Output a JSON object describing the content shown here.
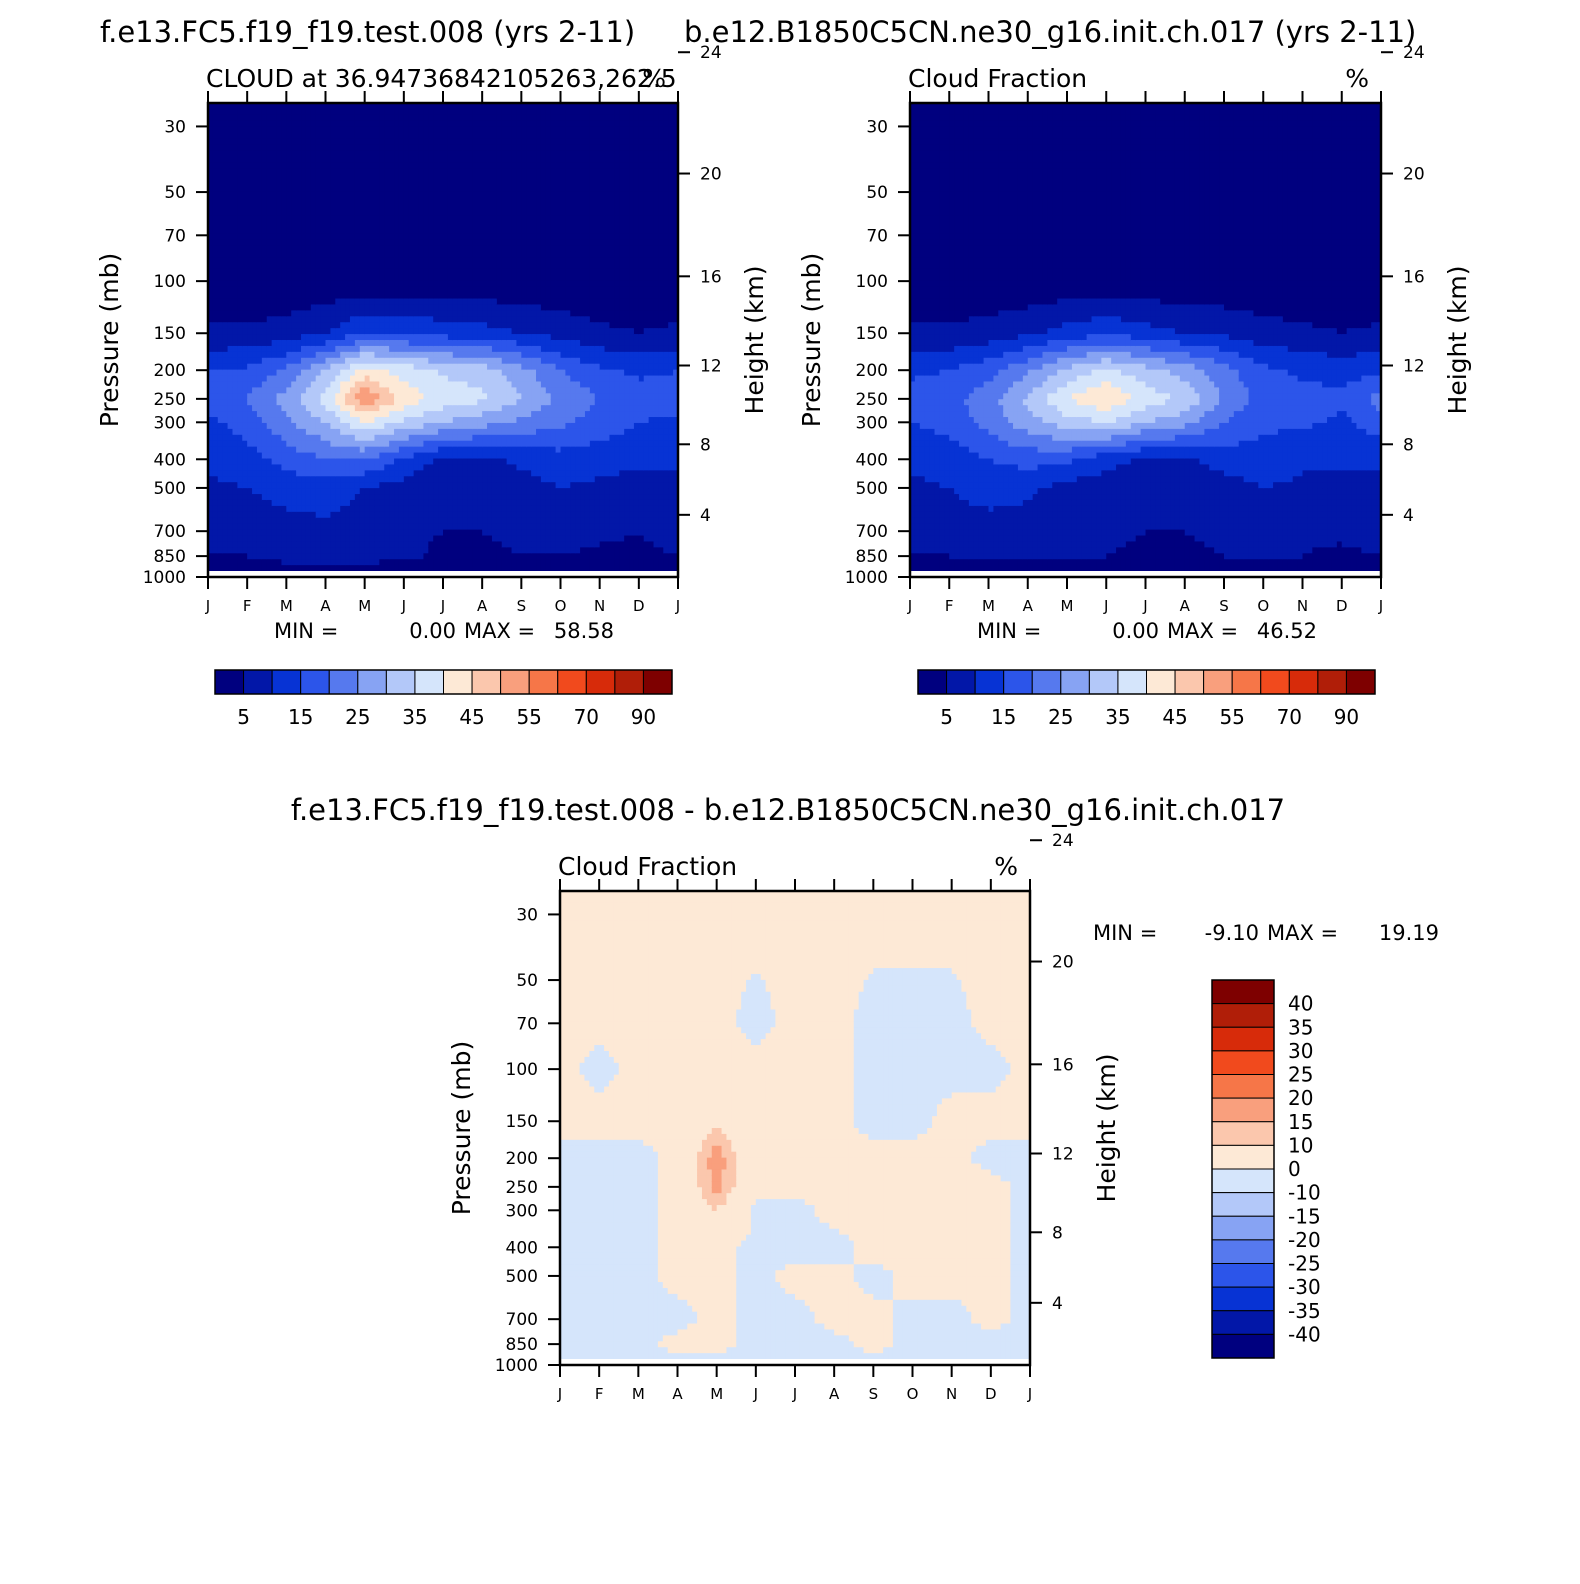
{
  "panels": {
    "top_left_title": "f.e13.FC5.f19_f19.test.008 (yrs 2-11)",
    "top_right_title": "b.e12.B1850C5CN.ne30_g16.init.ch.017 (yrs 2-11)",
    "bottom_title": "f.e13.FC5.f19_f19.test.008 - b.e12.B1850C5CN.ne30_g16.init.ch.017"
  },
  "colors": {
    "cloud_levels": [
      "#00007f",
      "#0217a8",
      "#0733d4",
      "#2c55ea",
      "#5679ee",
      "#87a3f3",
      "#b3c8f9",
      "#d5e5fb",
      "#fde9d6",
      "#fbc7ad",
      "#f99f7d",
      "#f67648",
      "#f14a1d",
      "#d72b0a",
      "#b01e08",
      "#7e0000"
    ],
    "diff_levels": [
      "#00007f",
      "#0217a8",
      "#0733d4",
      "#2c55ea",
      "#5679ee",
      "#87a3f3",
      "#b3c8f9",
      "#d5e5fb",
      "#fde9d6",
      "#fbc7ad",
      "#f99f7d",
      "#f67648",
      "#f14a1d",
      "#d72b0a",
      "#b01e08",
      "#7e0000"
    ]
  },
  "chart_data": [
    {
      "type": "heatmap",
      "id": "test_case",
      "subtitle_left": "CLOUD at 36.94736842105263,262.5",
      "subtitle_right": "%",
      "ylabel_left": "Pressure (mb)",
      "ylabel_right": "Height (km)",
      "pressure_ticks": [
        30,
        50,
        70,
        100,
        150,
        200,
        250,
        300,
        400,
        500,
        700,
        850,
        1000
      ],
      "height_ticks": [
        4,
        8,
        12,
        16,
        20,
        24
      ],
      "month_labels": [
        "J",
        "F",
        "M",
        "A",
        "M",
        "J",
        "J",
        "A",
        "S",
        "O",
        "N",
        "D",
        "J"
      ],
      "min_label": "MIN =",
      "min_value": "0.00",
      "max_label": "MAX =",
      "max_value": "58.58",
      "levelbar_labels": [
        "5",
        "15",
        "25",
        "35",
        "45",
        "55",
        "70",
        "90"
      ],
      "approx_field": {
        "months": [
          1,
          2,
          3,
          4,
          5,
          6,
          7,
          8,
          9,
          10,
          11,
          12,
          13
        ],
        "pressure_levels_mb": [
          30,
          100,
          150,
          200,
          250,
          300,
          400,
          500,
          700,
          850,
          1000
        ],
        "values_pct": [
          [
            1,
            1,
            1,
            1,
            1,
            1,
            1,
            1,
            1,
            1,
            1,
            1,
            1
          ],
          [
            1,
            1,
            1,
            1,
            1,
            1,
            1,
            1,
            1,
            1,
            1,
            1,
            1
          ],
          [
            6,
            6,
            7,
            10,
            15,
            14,
            13,
            12,
            10,
            8,
            6,
            5,
            6
          ],
          [
            15,
            16,
            21,
            30,
            42,
            38,
            34,
            33,
            27,
            20,
            16,
            14,
            15
          ],
          [
            17,
            20,
            27,
            37,
            55,
            43,
            38,
            36,
            30,
            24,
            20,
            17,
            17
          ],
          [
            14,
            17,
            24,
            30,
            40,
            34,
            30,
            27,
            24,
            21,
            18,
            15,
            14
          ],
          [
            11,
            13,
            17,
            20,
            20,
            14,
            9,
            9,
            11,
            13,
            12,
            11,
            11
          ],
          [
            9,
            10,
            12,
            12,
            10,
            8,
            6,
            6,
            8,
            10,
            9,
            8,
            9
          ],
          [
            7,
            7,
            8,
            9,
            8,
            6,
            5,
            5,
            6,
            7,
            6,
            5,
            7
          ],
          [
            5,
            5,
            7,
            7,
            7,
            6,
            4,
            4,
            5,
            5,
            4,
            4,
            5
          ],
          [
            1,
            1,
            1,
            1,
            1,
            1,
            1,
            1,
            1,
            1,
            1,
            1,
            1
          ]
        ]
      }
    },
    {
      "type": "heatmap",
      "id": "control_case",
      "subtitle_left": "Cloud Fraction",
      "subtitle_right": "%",
      "ylabel_left": "Pressure (mb)",
      "ylabel_right": "Height (km)",
      "pressure_ticks": [
        30,
        50,
        70,
        100,
        150,
        200,
        250,
        300,
        400,
        500,
        700,
        850,
        1000
      ],
      "height_ticks": [
        4,
        8,
        12,
        16,
        20,
        24
      ],
      "month_labels": [
        "J",
        "F",
        "M",
        "A",
        "M",
        "J",
        "J",
        "A",
        "S",
        "O",
        "N",
        "D",
        "J"
      ],
      "min_label": "MIN =",
      "min_value": "0.00",
      "max_label": "MAX =",
      "max_value": "46.52",
      "levelbar_labels": [
        "5",
        "15",
        "25",
        "35",
        "45",
        "55",
        "70",
        "90"
      ],
      "approx_field": {
        "months": [
          1,
          2,
          3,
          4,
          5,
          6,
          7,
          8,
          9,
          10,
          11,
          12,
          13
        ],
        "pressure_levels_mb": [
          30,
          100,
          150,
          200,
          250,
          300,
          400,
          500,
          700,
          850,
          1000
        ],
        "values_pct": [
          [
            1,
            1,
            1,
            1,
            1,
            1,
            1,
            1,
            1,
            1,
            1,
            1,
            1
          ],
          [
            1,
            1,
            1,
            1,
            1,
            1,
            1,
            1,
            1,
            1,
            1,
            1,
            1
          ],
          [
            6,
            6,
            7,
            9,
            12,
            14,
            12,
            10,
            9,
            7,
            6,
            5,
            6
          ],
          [
            14,
            15,
            18,
            24,
            31,
            36,
            32,
            28,
            22,
            16,
            14,
            13,
            14
          ],
          [
            17,
            18,
            23,
            31,
            40,
            45,
            38,
            34,
            24,
            18,
            17,
            16,
            22
          ],
          [
            15,
            17,
            22,
            28,
            33,
            35,
            30,
            27,
            20,
            16,
            16,
            14,
            18
          ],
          [
            11,
            12,
            15,
            17,
            16,
            12,
            9,
            9,
            12,
            13,
            11,
            11,
            11
          ],
          [
            9,
            10,
            12,
            11,
            8,
            7,
            6,
            6,
            8,
            10,
            9,
            8,
            9
          ],
          [
            7,
            8,
            8,
            8,
            6,
            6,
            5,
            5,
            6,
            8,
            6,
            6,
            7
          ],
          [
            5,
            5,
            6,
            6,
            6,
            5,
            4,
            4,
            5,
            6,
            5,
            4,
            5
          ],
          [
            1,
            1,
            1,
            1,
            1,
            1,
            1,
            1,
            1,
            1,
            1,
            1,
            1
          ]
        ]
      }
    },
    {
      "type": "heatmap",
      "id": "difference",
      "subtitle_left": "Cloud Fraction",
      "subtitle_right": "%",
      "ylabel_left": "Pressure (mb)",
      "ylabel_right": "Height (km)",
      "pressure_ticks": [
        30,
        50,
        70,
        100,
        150,
        200,
        250,
        300,
        400,
        500,
        700,
        850,
        1000
      ],
      "height_ticks": [
        4,
        8,
        12,
        16,
        20,
        24
      ],
      "month_labels": [
        "J",
        "F",
        "M",
        "A",
        "M",
        "J",
        "J",
        "A",
        "S",
        "O",
        "N",
        "D",
        "J"
      ],
      "min_label": "MIN =",
      "min_value": "-9.10",
      "max_label": "MAX =",
      "max_value": "19.19",
      "levelbar_labels": [
        "40",
        "35",
        "30",
        "25",
        "20",
        "15",
        "10",
        "0",
        "-10",
        "-15",
        "-20",
        "-25",
        "-30",
        "-35",
        "-40"
      ],
      "approx_field": {
        "months": [
          1,
          2,
          3,
          4,
          5,
          6,
          7,
          8,
          9,
          10,
          11,
          12,
          13
        ],
        "pressure_levels_mb": [
          30,
          70,
          100,
          150,
          200,
          250,
          300,
          400,
          500,
          700,
          850,
          1000
        ],
        "values_pct": [
          [
            1,
            1,
            1,
            1,
            1,
            1,
            1,
            1,
            1,
            1,
            1,
            1,
            1
          ],
          [
            1,
            1,
            1,
            1,
            1,
            -1,
            1,
            1,
            -1,
            -1,
            -1,
            1,
            1
          ],
          [
            1,
            -1,
            1,
            1,
            1,
            1,
            1,
            1,
            -1,
            -1,
            -1,
            -1,
            1
          ],
          [
            1,
            1,
            1,
            1,
            8,
            1,
            1,
            1,
            -1,
            -1,
            1,
            1,
            1
          ],
          [
            -1,
            -1,
            -1,
            1,
            19,
            1,
            1,
            1,
            1,
            1,
            1,
            -1,
            -1
          ],
          [
            -1,
            -1,
            -1,
            1,
            17,
            1,
            1,
            1,
            1,
            1,
            1,
            1,
            -1
          ],
          [
            -1,
            -1,
            -1,
            1,
            10,
            -1,
            -1,
            1,
            1,
            1,
            1,
            1,
            -1
          ],
          [
            -1,
            -1,
            -1,
            1,
            1,
            -1,
            -1,
            -1,
            1,
            1,
            1,
            1,
            -1
          ],
          [
            -1,
            -1,
            -1,
            1,
            1,
            -1,
            1,
            1,
            -1,
            1,
            1,
            1,
            -1
          ],
          [
            -1,
            -1,
            -1,
            -1,
            1,
            -1,
            -1,
            1,
            1,
            -1,
            -1,
            1,
            -1
          ],
          [
            -1,
            -1,
            -1,
            1,
            1,
            -1,
            -1,
            -1,
            1,
            -1,
            -1,
            -1,
            -1
          ],
          [
            -1,
            -1,
            -1,
            -1,
            -1,
            -1,
            -1,
            -1,
            -1,
            -1,
            -1,
            -1,
            -1
          ]
        ]
      }
    }
  ]
}
